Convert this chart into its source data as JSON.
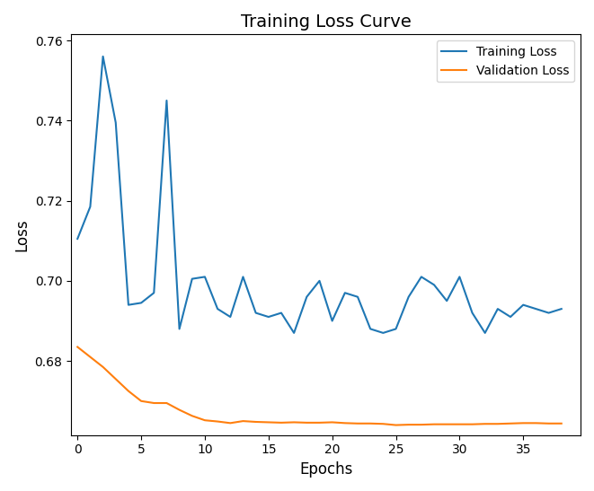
{
  "title": "Training Loss Curve",
  "xlabel": "Epochs",
  "ylabel": "Loss",
  "training_loss": {
    "x": [
      0,
      1,
      2,
      3,
      4,
      5,
      6,
      7,
      8,
      9,
      10,
      11,
      12,
      13,
      14,
      15,
      16,
      17,
      18,
      19,
      20,
      21,
      22,
      23,
      24,
      25,
      26,
      27,
      28,
      29,
      30,
      31,
      32,
      33,
      34,
      35,
      36,
      37,
      38
    ],
    "y": [
      0.7105,
      0.7185,
      0.756,
      0.7395,
      0.694,
      0.6945,
      0.697,
      0.745,
      0.688,
      0.7005,
      0.701,
      0.693,
      0.691,
      0.701,
      0.692,
      0.691,
      0.692,
      0.687,
      0.696,
      0.7,
      0.69,
      0.697,
      0.696,
      0.688,
      0.687,
      0.688,
      0.696,
      0.701,
      0.699,
      0.695,
      0.701,
      0.692,
      0.687,
      0.693,
      0.691,
      0.694,
      0.693,
      0.692,
      0.693
    ],
    "color": "#1f77b4",
    "label": "Training Loss"
  },
  "validation_loss": {
    "x": [
      0,
      1,
      2,
      3,
      4,
      5,
      6,
      7,
      8,
      9,
      10,
      11,
      12,
      13,
      14,
      15,
      16,
      17,
      18,
      19,
      20,
      21,
      22,
      23,
      24,
      25,
      26,
      27,
      28,
      29,
      30,
      31,
      32,
      33,
      34,
      35,
      36,
      37,
      38
    ],
    "y": [
      0.6835,
      0.681,
      0.6785,
      0.6755,
      0.6725,
      0.67,
      0.6695,
      0.6695,
      0.6678,
      0.6663,
      0.6652,
      0.6649,
      0.6645,
      0.665,
      0.6648,
      0.6647,
      0.6646,
      0.6647,
      0.6646,
      0.6646,
      0.6647,
      0.6645,
      0.6644,
      0.6644,
      0.6643,
      0.664,
      0.6641,
      0.6641,
      0.6642,
      0.6642,
      0.6642,
      0.6642,
      0.6643,
      0.6643,
      0.6644,
      0.6645,
      0.6645,
      0.6644,
      0.6644
    ],
    "color": "#ff7f0e",
    "label": "Validation Loss"
  },
  "ylim": [
    0.6615,
    0.7615
  ],
  "xlim": [
    -0.5,
    39.5
  ],
  "xticks": [
    0,
    5,
    10,
    15,
    20,
    25,
    30,
    35
  ],
  "figsize": [
    6.61,
    5.47
  ],
  "dpi": 100
}
